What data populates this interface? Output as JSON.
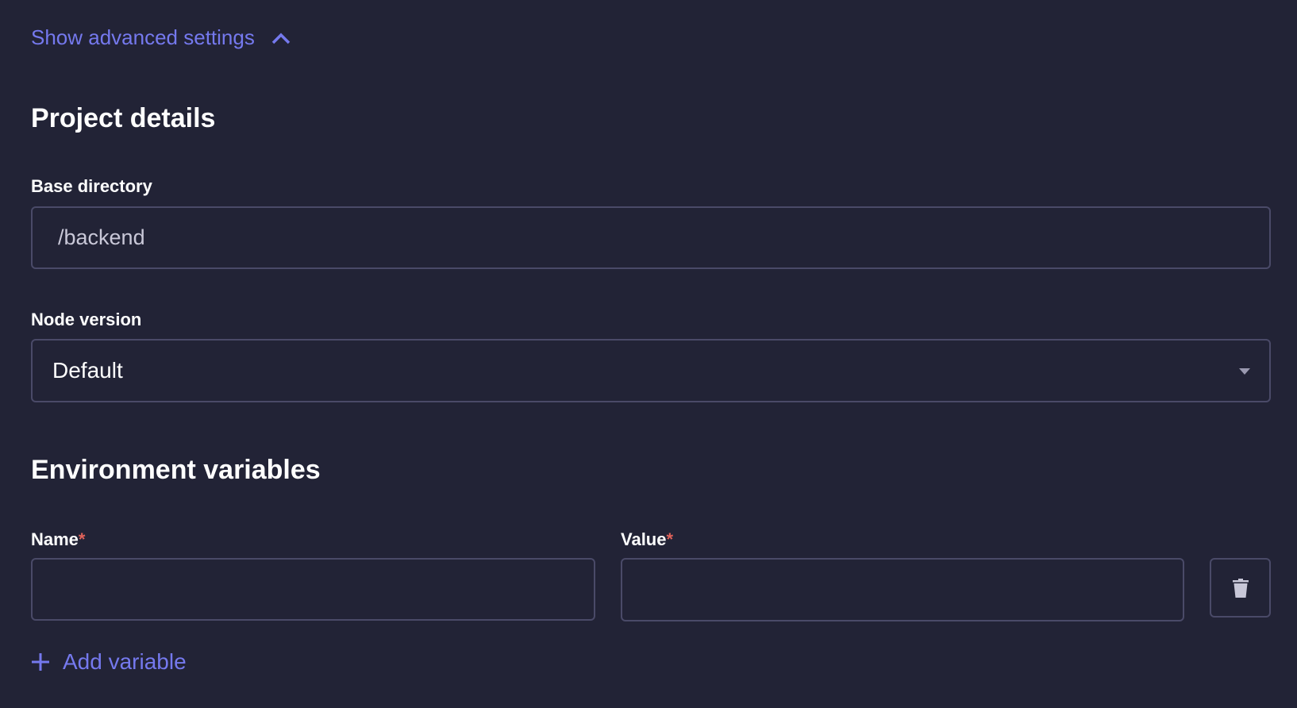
{
  "advanced_toggle": {
    "label": "Show advanced settings",
    "icon": "chevron-up-icon"
  },
  "project_details": {
    "title": "Project details",
    "base_directory": {
      "label": "Base directory",
      "value": "/backend"
    },
    "node_version": {
      "label": "Node version",
      "selected": "Default"
    }
  },
  "env_vars": {
    "title": "Environment variables",
    "name_label": "Name",
    "value_label": "Value",
    "required_marker": "*",
    "name_value": "",
    "value_value": "",
    "add_label": "Add variable"
  },
  "colors": {
    "background": "#222336",
    "accent": "#7579ee",
    "border": "#4a4a68",
    "required": "#e0625a"
  }
}
